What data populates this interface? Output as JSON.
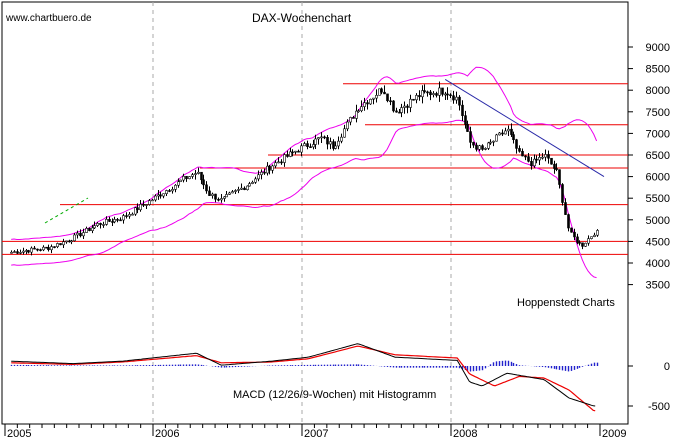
{
  "watermark": "www.chartbuero.de",
  "chart_title": "DAX-Wochenchart",
  "credit": "Hoppenstedt Charts",
  "macd_label": "MACD (12/26/9-Wochen) mit Histogramm",
  "colors": {
    "candles": "#000000",
    "bollinger": "#ee00ee",
    "support_resistance": "#ee0000",
    "downtrend": "#2a2aa8",
    "uptrend_dashed": "#00aa00",
    "macd_line": "#000000",
    "signal_line": "#ee0000",
    "histogram": "#2222cc",
    "grid": "#aaaaaa"
  },
  "chart_data": [
    {
      "type": "candlestick",
      "title": "DAX-Wochenchart",
      "y_ticks": [
        3500,
        4000,
        4500,
        5000,
        5500,
        6000,
        6500,
        7000,
        7500,
        8000,
        8500,
        9000
      ],
      "x_ticks": [
        "2005",
        "2006",
        "2007",
        "2008",
        "2009"
      ],
      "ylim": [
        3300,
        9050
      ],
      "grid": "vertical dashed at year boundaries",
      "overlays": [
        "Bollinger bands",
        "horizontal support/resistance lines",
        "downtrend line"
      ],
      "horizontal_lines": [
        8150,
        7200,
        6500,
        6200,
        5350,
        4500,
        4200
      ],
      "downtrend_line": [
        {
          "x": "2008-01",
          "y": 8250
        },
        {
          "x": "2009-01",
          "y": 6000
        }
      ],
      "close_path": [
        {
          "x": "2005-01",
          "y": 4250
        },
        {
          "x": "2005-04",
          "y": 4350
        },
        {
          "x": "2005-06",
          "y": 4580
        },
        {
          "x": "2005-08",
          "y": 4900
        },
        {
          "x": "2005-10",
          "y": 5050
        },
        {
          "x": "2005-12",
          "y": 5400
        },
        {
          "x": "2006-03",
          "y": 5950
        },
        {
          "x": "2006-04",
          "y": 6100
        },
        {
          "x": "2006-05",
          "y": 5600
        },
        {
          "x": "2006-06",
          "y": 5450
        },
        {
          "x": "2006-08",
          "y": 5800
        },
        {
          "x": "2006-10",
          "y": 6250
        },
        {
          "x": "2006-12",
          "y": 6600
        },
        {
          "x": "2007-02",
          "y": 6900
        },
        {
          "x": "2007-03",
          "y": 6700
        },
        {
          "x": "2007-05",
          "y": 7600
        },
        {
          "x": "2007-07",
          "y": 8050
        },
        {
          "x": "2007-08",
          "y": 7500
        },
        {
          "x": "2007-10",
          "y": 7900
        },
        {
          "x": "2007-12",
          "y": 8000
        },
        {
          "x": "2008-01",
          "y": 7800
        },
        {
          "x": "2008-02",
          "y": 6800
        },
        {
          "x": "2008-03",
          "y": 6600
        },
        {
          "x": "2008-05",
          "y": 7100
        },
        {
          "x": "2008-06",
          "y": 6500
        },
        {
          "x": "2008-07",
          "y": 6300
        },
        {
          "x": "2008-08",
          "y": 6500
        },
        {
          "x": "2008-09",
          "y": 6100
        },
        {
          "x": "2008-10",
          "y": 4700
        },
        {
          "x": "2008-11",
          "y": 4400
        },
        {
          "x": "2008-12",
          "y": 4700
        }
      ]
    },
    {
      "type": "line",
      "title": "MACD (12/26/9-Wochen) mit Histogramm",
      "y_ticks": [
        -500,
        0
      ],
      "ylim": [
        -700,
        400
      ],
      "series": [
        {
          "values_path": [
            {
              "x": "2005-01",
              "y": 60
            },
            {
              "x": "2005-06",
              "y": 30
            },
            {
              "x": "2005-10",
              "y": 60
            },
            {
              "x": "2006-04",
              "y": 160
            },
            {
              "x": "2006-06",
              "y": 10
            },
            {
              "x": "2006-10",
              "y": 60
            },
            {
              "x": "2007-01",
              "y": 110
            },
            {
              "x": "2007-05",
              "y": 280
            },
            {
              "x": "2007-08",
              "y": 110
            },
            {
              "x": "2008-01",
              "y": 70
            },
            {
              "x": "2008-02",
              "y": -200
            },
            {
              "x": "2008-03",
              "y": -250
            },
            {
              "x": "2008-05",
              "y": -90
            },
            {
              "x": "2008-08",
              "y": -170
            },
            {
              "x": "2008-10",
              "y": -400
            },
            {
              "x": "2008-12",
              "y": -500
            }
          ]
        },
        {
          "values_path": [
            {
              "x": "2005-01",
              "y": 40
            },
            {
              "x": "2005-06",
              "y": 20
            },
            {
              "x": "2005-10",
              "y": 50
            },
            {
              "x": "2006-04",
              "y": 130
            },
            {
              "x": "2006-06",
              "y": 40
            },
            {
              "x": "2006-10",
              "y": 50
            },
            {
              "x": "2007-01",
              "y": 90
            },
            {
              "x": "2007-05",
              "y": 250
            },
            {
              "x": "2007-08",
              "y": 140
            },
            {
              "x": "2008-01",
              "y": 100
            },
            {
              "x": "2008-02",
              "y": -100
            },
            {
              "x": "2008-04",
              "y": -250
            },
            {
              "x": "2008-06",
              "y": -130
            },
            {
              "x": "2008-08",
              "y": -150
            },
            {
              "x": "2008-10",
              "y": -300
            },
            {
              "x": "2008-12",
              "y": -560
            }
          ]
        }
      ],
      "histogram": "bars around zero line"
    }
  ]
}
